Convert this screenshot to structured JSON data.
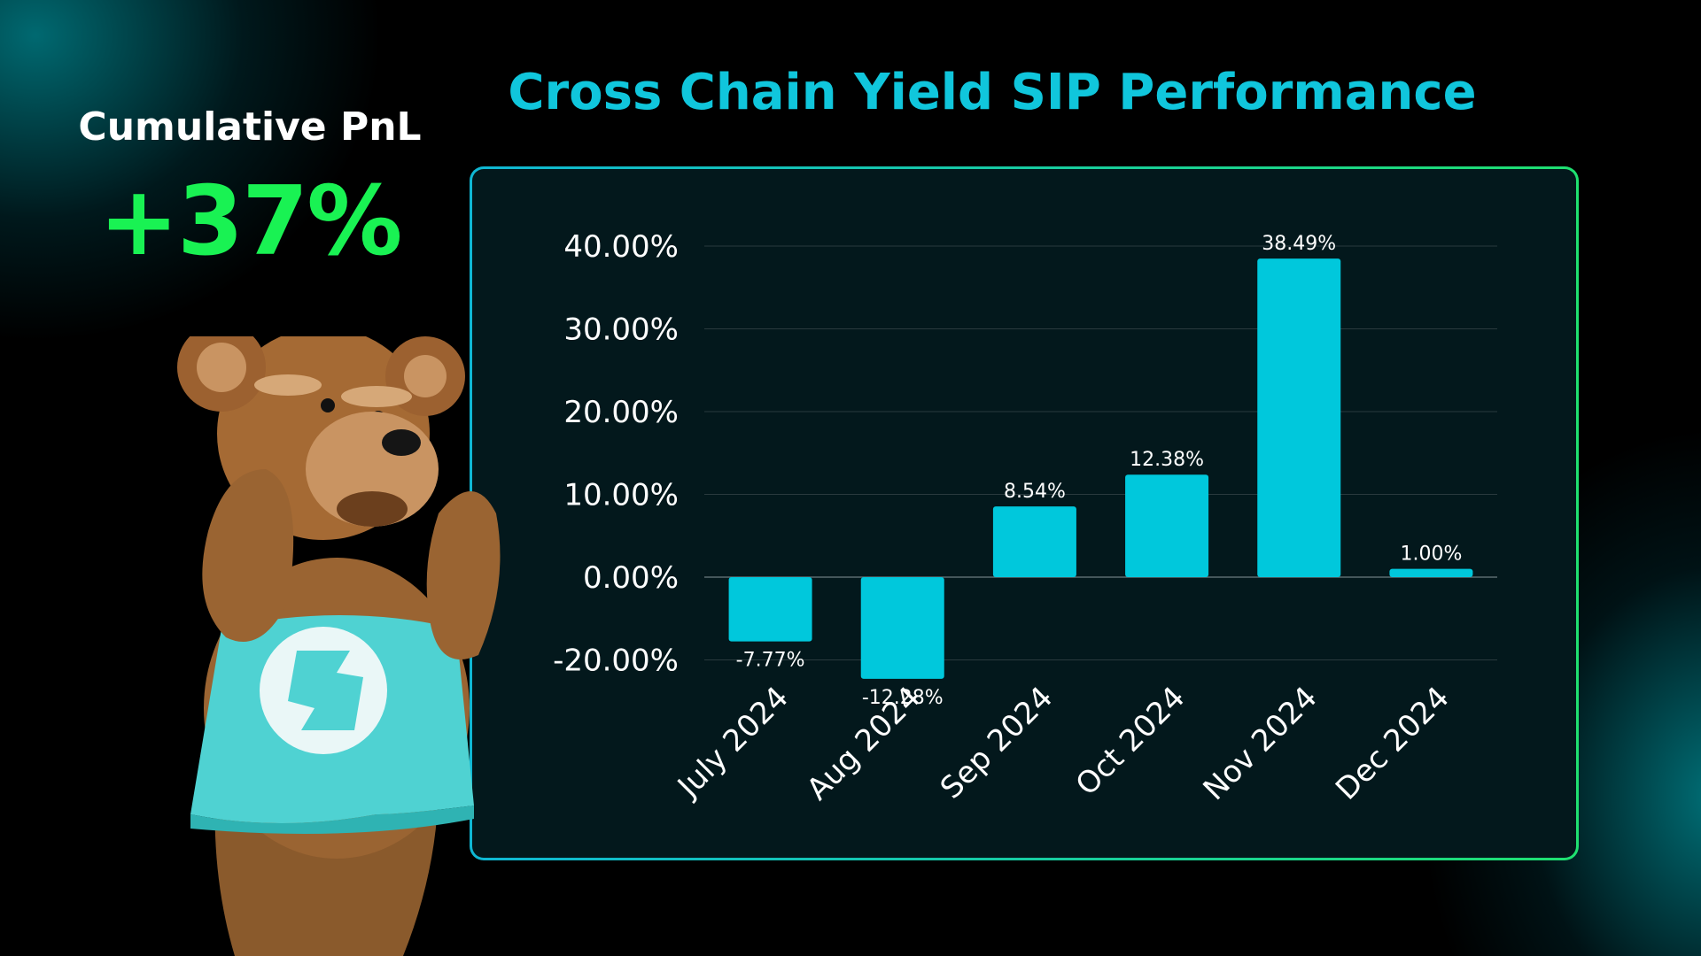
{
  "summary": {
    "label": "Cumulative PnL",
    "value": "+37%"
  },
  "colors": {
    "accent_title": "#10c6dc",
    "pnl_green": "#19f253",
    "bar": "#00c8dc",
    "gridline": "#2a3a3e"
  },
  "chart_data": {
    "type": "bar",
    "title": "Cross Chain Yield SIP Performance",
    "xlabel": "",
    "ylabel": "",
    "categories": [
      "July 2024",
      "Aug 2024",
      "Sep 2024",
      "Oct 2024",
      "Nov 2024",
      "Dec 2024"
    ],
    "values": [
      -7.77,
      -12.28,
      8.54,
      12.38,
      38.49,
      1.0
    ],
    "data_labels": [
      "-7.77%",
      "-12.28%",
      "8.54%",
      "12.38%",
      "38.49%",
      "1.00%"
    ],
    "y_ticks": [
      -20,
      0,
      10,
      20,
      30,
      40
    ],
    "y_tick_labels": [
      "-20.00%",
      "0.00%",
      "10.00%",
      "20.00%",
      "30.00%",
      "40.00%"
    ],
    "ylim": [
      -10,
      40
    ],
    "grid": true,
    "legend": "none"
  },
  "illustration": {
    "subject": "teddy-bear-mascot",
    "shirt_color": "#4fd2d2"
  }
}
